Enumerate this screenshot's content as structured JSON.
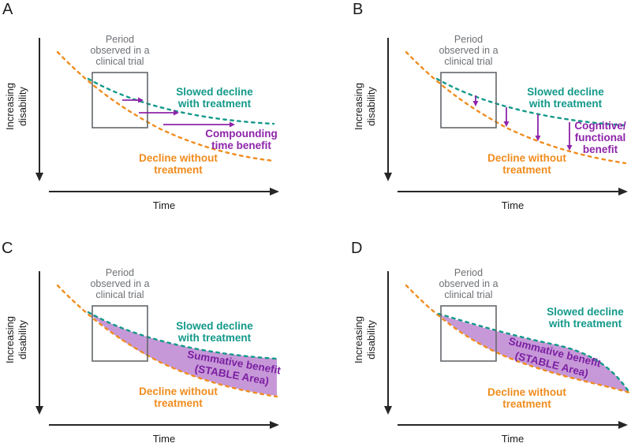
{
  "colors": {
    "background": "#ffffff",
    "axis": "#262626",
    "text_dark": "#1c1c1c",
    "grey_box": "#63676b",
    "grey_text": "#6d7175",
    "treated_curve": "#13998a",
    "untreated_curve": "#f08c1e",
    "benefit_purple": "#8e24aa",
    "benefit_area_fill": "#c798d8",
    "benefit_area_label": "#7b1fa2"
  },
  "shared": {
    "y_axis_label": [
      "Increasing",
      "disability"
    ],
    "x_axis_label": "Time",
    "trial_box_label": [
      "Period",
      "observed in a",
      "clinical trial"
    ],
    "treated_label": [
      "Slowed decline",
      "with treatment"
    ],
    "untreated_label": [
      "Decline without",
      "treatment"
    ]
  },
  "panels": {
    "A": {
      "letter": "A",
      "benefit_label": [
        "Compounding",
        "time benefit"
      ]
    },
    "B": {
      "letter": "B",
      "benefit_label": [
        "Cognitive/",
        "functional",
        "benefit"
      ]
    },
    "C": {
      "letter": "C",
      "benefit_label": [
        "Summative benefit",
        "(STABLE Area)"
      ]
    },
    "D": {
      "letter": "D",
      "benefit_label": [
        "Summative benefit",
        "(STABLE Area)"
      ]
    }
  }
}
